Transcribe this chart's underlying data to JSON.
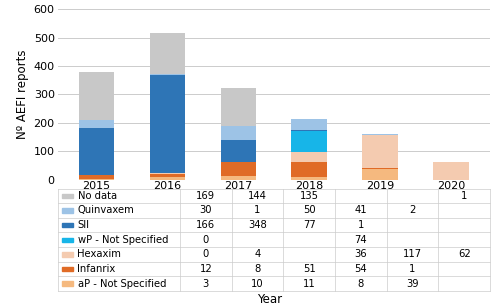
{
  "years": [
    "2015",
    "2016",
    "2017",
    "2018",
    "2019",
    "2020"
  ],
  "series_order": [
    "aP - Not Specified",
    "Infanrix",
    "Hexaxim",
    "wP - Not Specified",
    "SII",
    "Quinvaxem",
    "No data"
  ],
  "series": {
    "No data": [
      169,
      144,
      135,
      0,
      0,
      1
    ],
    "Quinvaxem": [
      30,
      1,
      50,
      41,
      2,
      0
    ],
    "SII": [
      166,
      348,
      77,
      1,
      0,
      0
    ],
    "wP - Not Specified": [
      0,
      0,
      0,
      74,
      0,
      0
    ],
    "Hexaxim": [
      0,
      4,
      0,
      36,
      117,
      62
    ],
    "Infanrix": [
      12,
      8,
      51,
      54,
      1,
      0
    ],
    "aP - Not Specified": [
      3,
      10,
      11,
      8,
      39,
      0
    ]
  },
  "table_order": [
    "No data",
    "Quinvaxem",
    "SII",
    "wP - Not Specified",
    "Hexaxim",
    "Infanrix",
    "aP - Not Specified"
  ],
  "table_show_zero": {
    "No data": [
      false,
      false,
      false,
      false,
      false,
      false
    ],
    "Quinvaxem": [
      false,
      false,
      false,
      false,
      false,
      false
    ],
    "SII": [
      false,
      false,
      false,
      false,
      false,
      false
    ],
    "wP - Not Specified": [
      true,
      false,
      false,
      false,
      false,
      false
    ],
    "Hexaxim": [
      true,
      false,
      false,
      false,
      false,
      false
    ],
    "Infanrix": [
      false,
      false,
      false,
      false,
      false,
      false
    ],
    "aP - Not Specified": [
      false,
      false,
      false,
      false,
      false,
      false
    ]
  },
  "colors": {
    "No data": "#c8c8c8",
    "Quinvaxem": "#9dc3e6",
    "SII": "#2e75b6",
    "wP - Not Specified": "#17b5e8",
    "Hexaxim": "#f4cbb0",
    "Infanrix": "#e06b26",
    "aP - Not Specified": "#f5b97f"
  },
  "ylabel": "Nº AEFI reports",
  "xlabel": "Year",
  "ylim": [
    0,
    600
  ],
  "yticks": [
    0,
    100,
    200,
    300,
    400,
    500,
    600
  ],
  "bar_width": 0.5,
  "fig_width": 5.0,
  "fig_height": 3.07,
  "dpi": 100
}
